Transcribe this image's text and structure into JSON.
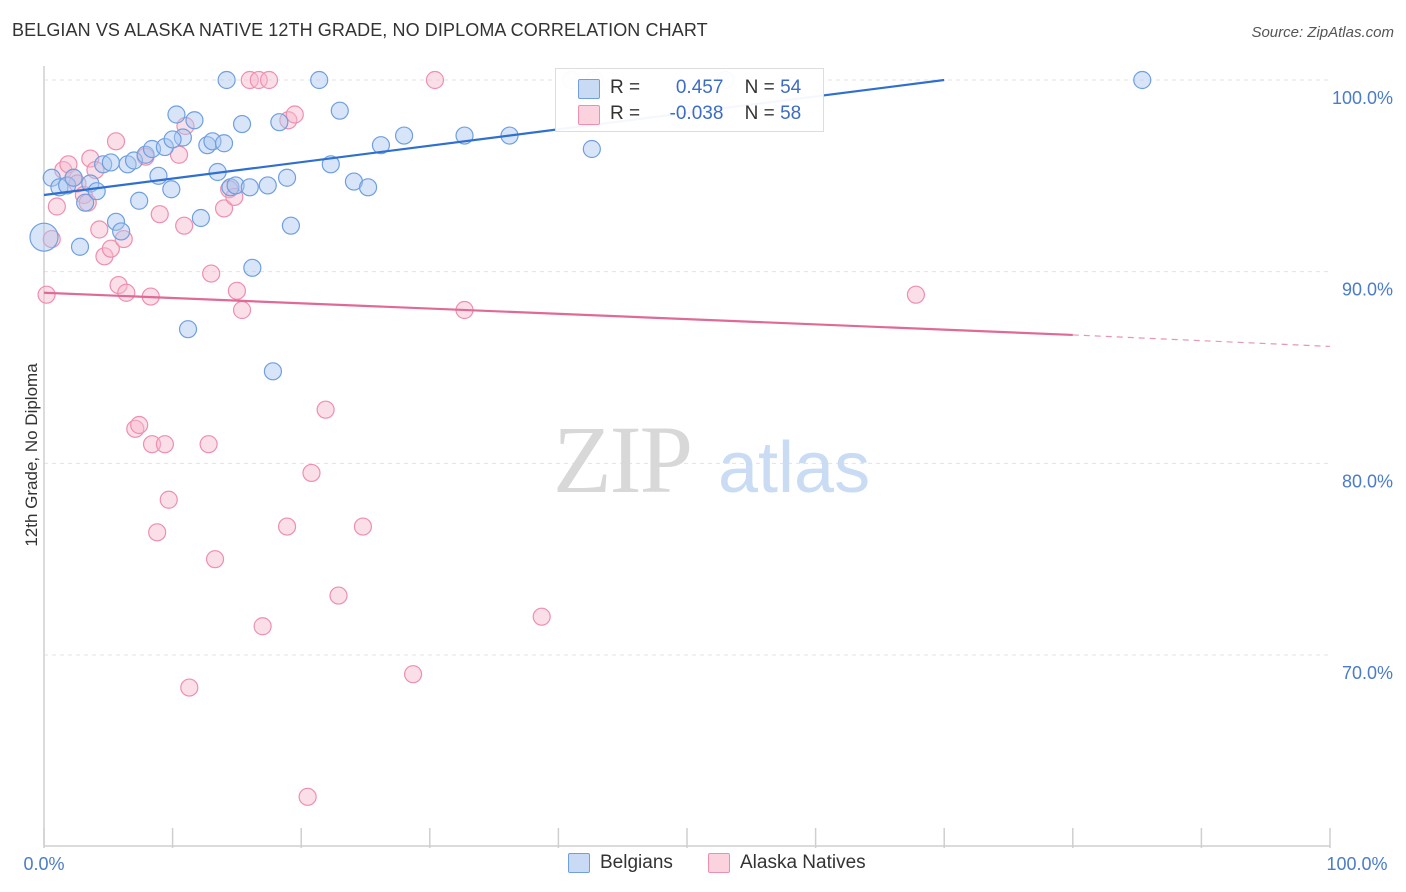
{
  "title": "BELGIAN VS ALASKA NATIVE 12TH GRADE, NO DIPLOMA CORRELATION CHART",
  "source": "Source: ZipAtlas.com",
  "watermark": {
    "zip": "ZIP",
    "atlas": "atlas"
  },
  "legend": {
    "rows": [
      {
        "r_label": "R =",
        "r_value": "0.457",
        "n_label": "N =",
        "n_value": "54",
        "color": "#a9c6ef"
      },
      {
        "r_label": "R =",
        "r_value": "-0.038",
        "n_label": "N =",
        "n_value": "58",
        "color": "#f6b8cb"
      }
    ]
  },
  "bottom_legend": [
    {
      "label": "Belgians",
      "color": "#a9c6ef"
    },
    {
      "label": "Alaska Natives",
      "color": "#f6b8cb"
    }
  ],
  "chart_data": {
    "type": "scatter",
    "title": "BELGIAN VS ALASKA NATIVE 12TH GRADE, NO DIPLOMA CORRELATION CHART",
    "xlabel": "",
    "ylabel": "12th Grade, No Diploma",
    "xlim": [
      0,
      100
    ],
    "ylim": [
      60,
      101.5
    ],
    "x_tick_labels": [
      "0.0%",
      "100.0%"
    ],
    "y_ticks": [
      70,
      80,
      90,
      100
    ],
    "y_tick_labels": [
      "70.0%",
      "80.0%",
      "90.0%",
      "100.0%"
    ],
    "grid": true,
    "legend_position": "top-center",
    "series": [
      {
        "name": "Belgians",
        "color": "#6f9fe0",
        "fill": "#a9c6ef",
        "trend": {
          "x": [
            0,
            70
          ],
          "y": [
            94.0,
            100.0
          ]
        },
        "points": [
          [
            0.0,
            91.8
          ],
          [
            0.6,
            94.9
          ],
          [
            1.2,
            94.4
          ],
          [
            1.8,
            94.5
          ],
          [
            2.3,
            94.9
          ],
          [
            2.8,
            91.3
          ],
          [
            3.2,
            93.6
          ],
          [
            3.6,
            94.6
          ],
          [
            4.1,
            94.2
          ],
          [
            4.6,
            95.6
          ],
          [
            5.2,
            95.7
          ],
          [
            5.6,
            92.6
          ],
          [
            6.0,
            92.1
          ],
          [
            6.5,
            95.6
          ],
          [
            7.0,
            95.8
          ],
          [
            7.4,
            93.7
          ],
          [
            7.9,
            96.1
          ],
          [
            8.4,
            96.4
          ],
          [
            8.9,
            95.0
          ],
          [
            9.4,
            96.5
          ],
          [
            9.9,
            94.3
          ],
          [
            10.3,
            98.2
          ],
          [
            10.8,
            97.0
          ],
          [
            11.2,
            87.0
          ],
          [
            11.7,
            97.9
          ],
          [
            12.2,
            92.8
          ],
          [
            12.7,
            96.6
          ],
          [
            13.1,
            96.8
          ],
          [
            13.5,
            95.2
          ],
          [
            14.0,
            96.7
          ],
          [
            14.5,
            94.4
          ],
          [
            14.2,
            100.0
          ],
          [
            14.9,
            94.5
          ],
          [
            15.4,
            97.7
          ],
          [
            16.2,
            90.2
          ],
          [
            17.4,
            94.5
          ],
          [
            18.3,
            97.8
          ],
          [
            18.9,
            94.9
          ],
          [
            19.2,
            92.4
          ],
          [
            17.8,
            84.8
          ],
          [
            21.4,
            100.0
          ],
          [
            22.3,
            95.6
          ],
          [
            23.0,
            98.4
          ],
          [
            24.1,
            94.7
          ],
          [
            25.2,
            94.4
          ],
          [
            26.2,
            96.6
          ],
          [
            28.0,
            97.1
          ],
          [
            32.7,
            97.1
          ],
          [
            36.2,
            97.1
          ],
          [
            42.6,
            96.4
          ],
          [
            53.0,
            100.0
          ],
          [
            85.4,
            100.0
          ],
          [
            16.0,
            94.4
          ],
          [
            10.0,
            96.9
          ]
        ]
      },
      {
        "name": "Alaska Natives",
        "color": "#ee8fae",
        "fill": "#f6b8cb",
        "trend": {
          "x": [
            0,
            80
          ],
          "y": [
            88.9,
            86.7
          ]
        },
        "trend_dashed": {
          "x": [
            80,
            100
          ],
          "y": [
            86.7,
            86.1
          ]
        },
        "points": [
          [
            0.2,
            88.8
          ],
          [
            0.6,
            91.7
          ],
          [
            1.0,
            93.4
          ],
          [
            1.5,
            95.3
          ],
          [
            1.9,
            95.6
          ],
          [
            2.3,
            94.9
          ],
          [
            2.6,
            94.6
          ],
          [
            3.1,
            94.0
          ],
          [
            3.4,
            93.6
          ],
          [
            3.6,
            95.9
          ],
          [
            4.0,
            95.3
          ],
          [
            4.3,
            92.2
          ],
          [
            4.7,
            90.8
          ],
          [
            5.2,
            91.2
          ],
          [
            5.6,
            96.8
          ],
          [
            5.8,
            89.3
          ],
          [
            6.2,
            91.7
          ],
          [
            6.4,
            88.9
          ],
          [
            7.1,
            81.8
          ],
          [
            7.4,
            82.0
          ],
          [
            7.9,
            96.0
          ],
          [
            8.3,
            88.7
          ],
          [
            8.4,
            81.0
          ],
          [
            8.8,
            76.4
          ],
          [
            9.0,
            93.0
          ],
          [
            9.4,
            81.0
          ],
          [
            9.7,
            78.1
          ],
          [
            10.5,
            96.1
          ],
          [
            10.9,
            92.4
          ],
          [
            11.0,
            97.6
          ],
          [
            11.3,
            68.3
          ],
          [
            12.8,
            81.0
          ],
          [
            13.0,
            89.9
          ],
          [
            13.3,
            75.0
          ],
          [
            14.0,
            93.3
          ],
          [
            14.4,
            94.3
          ],
          [
            14.8,
            93.9
          ],
          [
            15.0,
            89.0
          ],
          [
            15.4,
            88.0
          ],
          [
            16.0,
            100.0
          ],
          [
            16.7,
            100.0
          ],
          [
            17.0,
            71.5
          ],
          [
            17.5,
            100.0
          ],
          [
            18.9,
            76.7
          ],
          [
            19.0,
            97.9
          ],
          [
            19.5,
            98.2
          ],
          [
            20.5,
            62.6
          ],
          [
            20.8,
            79.5
          ],
          [
            21.9,
            82.8
          ],
          [
            22.9,
            73.1
          ],
          [
            24.8,
            76.7
          ],
          [
            28.7,
            69.0
          ],
          [
            30.4,
            100.0
          ],
          [
            32.7,
            88.0
          ],
          [
            38.7,
            72.0
          ],
          [
            41.0,
            100.0
          ],
          [
            42.8,
            100.0
          ],
          [
            67.8,
            88.8
          ]
        ]
      }
    ]
  }
}
